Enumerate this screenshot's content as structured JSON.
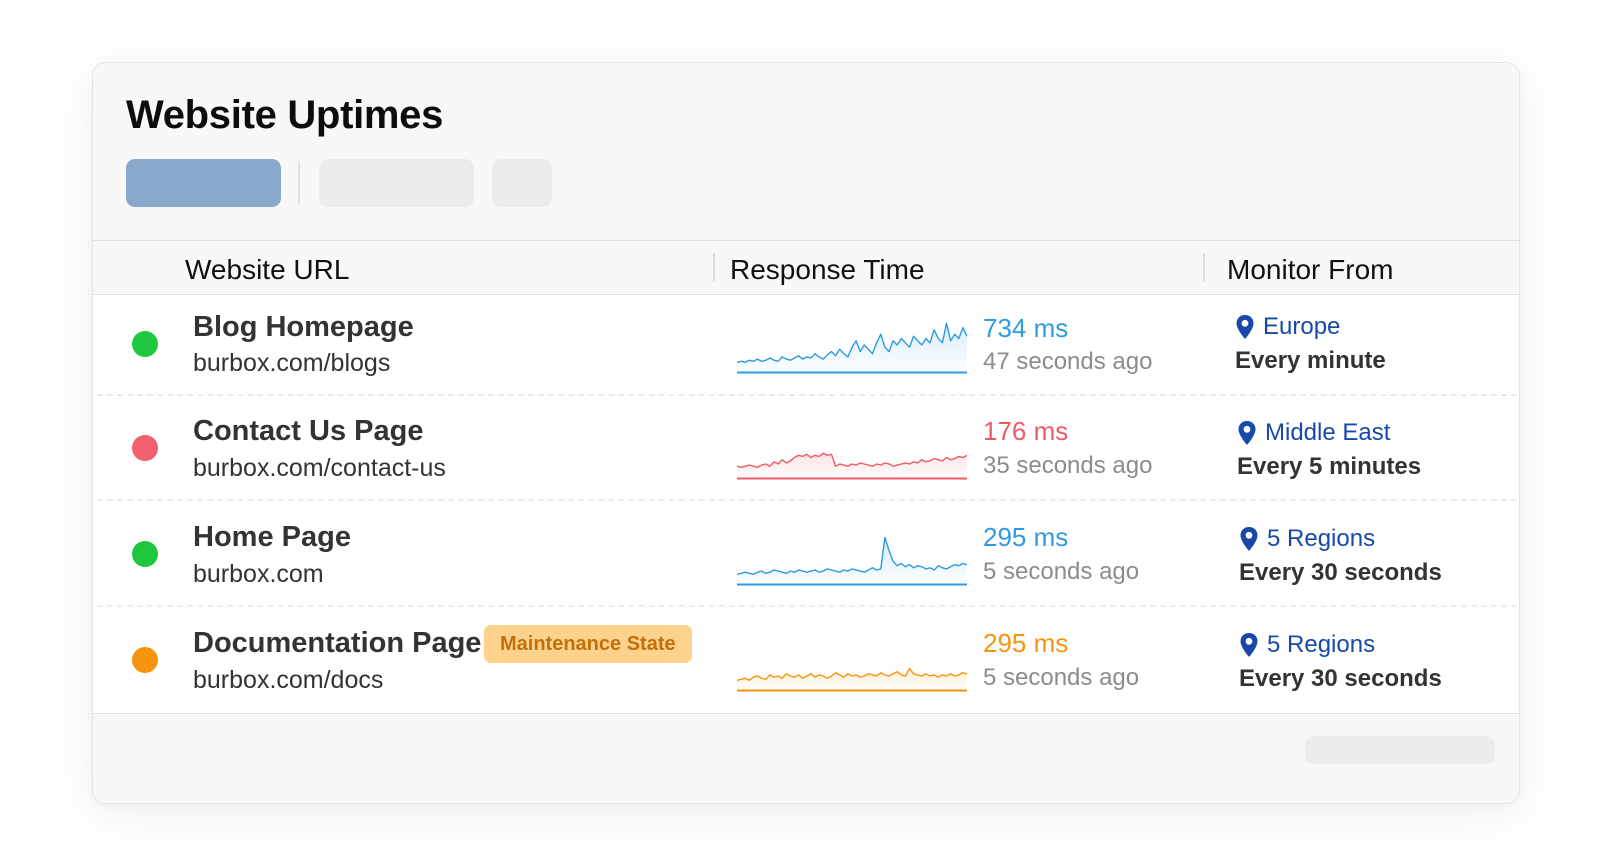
{
  "header": {
    "title": "Website Uptimes"
  },
  "columns": {
    "url": "Website URL",
    "response": "Response Time",
    "monitor": "Monitor From"
  },
  "colors": {
    "up": "#1ec73d",
    "down": "#f0606e",
    "maintenance": "#f7940f",
    "accent_blue": "#2d9be0",
    "region_blue": "#1849a9"
  },
  "rows": [
    {
      "status": "up",
      "name": "Blog Homepage",
      "url": "burbox.com/blogs",
      "badge": "",
      "response_ms": "734 ms",
      "checked_ago": "47 seconds ago",
      "region": "Europe",
      "frequency": "Every minute",
      "spark_color": "#2d9be0",
      "spark": [
        8,
        9,
        8,
        10,
        9,
        11,
        9,
        10,
        12,
        10,
        9,
        13,
        11,
        10,
        12,
        14,
        11,
        13,
        12,
        16,
        13,
        11,
        15,
        18,
        14,
        20,
        16,
        13,
        22,
        28,
        18,
        24,
        20,
        16,
        26,
        34,
        22,
        18,
        28,
        24,
        30,
        26,
        22,
        32,
        28,
        24,
        30,
        26,
        38,
        30,
        26,
        44,
        28,
        34,
        30,
        40,
        32
      ]
    },
    {
      "status": "down",
      "name": "Contact Us Page",
      "url": "burbox.com/contact-us",
      "badge": "",
      "response_ms": "176 ms",
      "checked_ago": "35 seconds ago",
      "region": "Middle East",
      "frequency": "Every 5 minutes",
      "spark_color": "#ee5a68",
      "spark": [
        10,
        9,
        10,
        11,
        10,
        9,
        11,
        12,
        10,
        14,
        12,
        16,
        13,
        15,
        18,
        20,
        19,
        21,
        18,
        20,
        19,
        22,
        20,
        21,
        10,
        12,
        11,
        10,
        12,
        11,
        13,
        12,
        11,
        10,
        12,
        11,
        13,
        12,
        10,
        11,
        12,
        13,
        12,
        14,
        13,
        16,
        14,
        15,
        17,
        16,
        15,
        18,
        16,
        17,
        19,
        18,
        20
      ]
    },
    {
      "status": "up",
      "name": "Home Page",
      "url": "burbox.com",
      "badge": "",
      "response_ms": "295 ms",
      "checked_ago": "5 seconds ago",
      "region": "5 Regions",
      "frequency": "Every 30 seconds",
      "spark_color": "#2d9be0",
      "spark": [
        8,
        9,
        10,
        9,
        8,
        10,
        11,
        9,
        10,
        12,
        11,
        10,
        9,
        11,
        10,
        12,
        11,
        10,
        11,
        12,
        10,
        11,
        13,
        12,
        11,
        10,
        12,
        11,
        13,
        12,
        11,
        10,
        12,
        14,
        12,
        13,
        42,
        30,
        20,
        16,
        18,
        15,
        17,
        14,
        16,
        15,
        13,
        14,
        12,
        16,
        14,
        13,
        15,
        17,
        16,
        18,
        17
      ]
    },
    {
      "status": "maintenance",
      "name": "Documentation Page",
      "url": "burbox.com/docs",
      "badge": "Maintenance State",
      "response_ms": "295 ms",
      "checked_ago": "5 seconds ago",
      "region": "5 Regions",
      "frequency": "Every 30 seconds",
      "spark_color": "#f7940f",
      "spark": [
        8,
        9,
        10,
        8,
        11,
        12,
        10,
        9,
        13,
        11,
        12,
        10,
        14,
        12,
        11,
        13,
        10,
        12,
        14,
        11,
        13,
        12,
        10,
        12,
        15,
        13,
        11,
        14,
        12,
        13,
        11,
        12,
        14,
        13,
        12,
        15,
        13,
        12,
        14,
        16,
        13,
        12,
        19,
        14,
        13,
        12,
        14,
        12,
        13,
        11,
        13,
        12,
        14,
        12,
        13,
        15,
        14
      ]
    }
  ]
}
